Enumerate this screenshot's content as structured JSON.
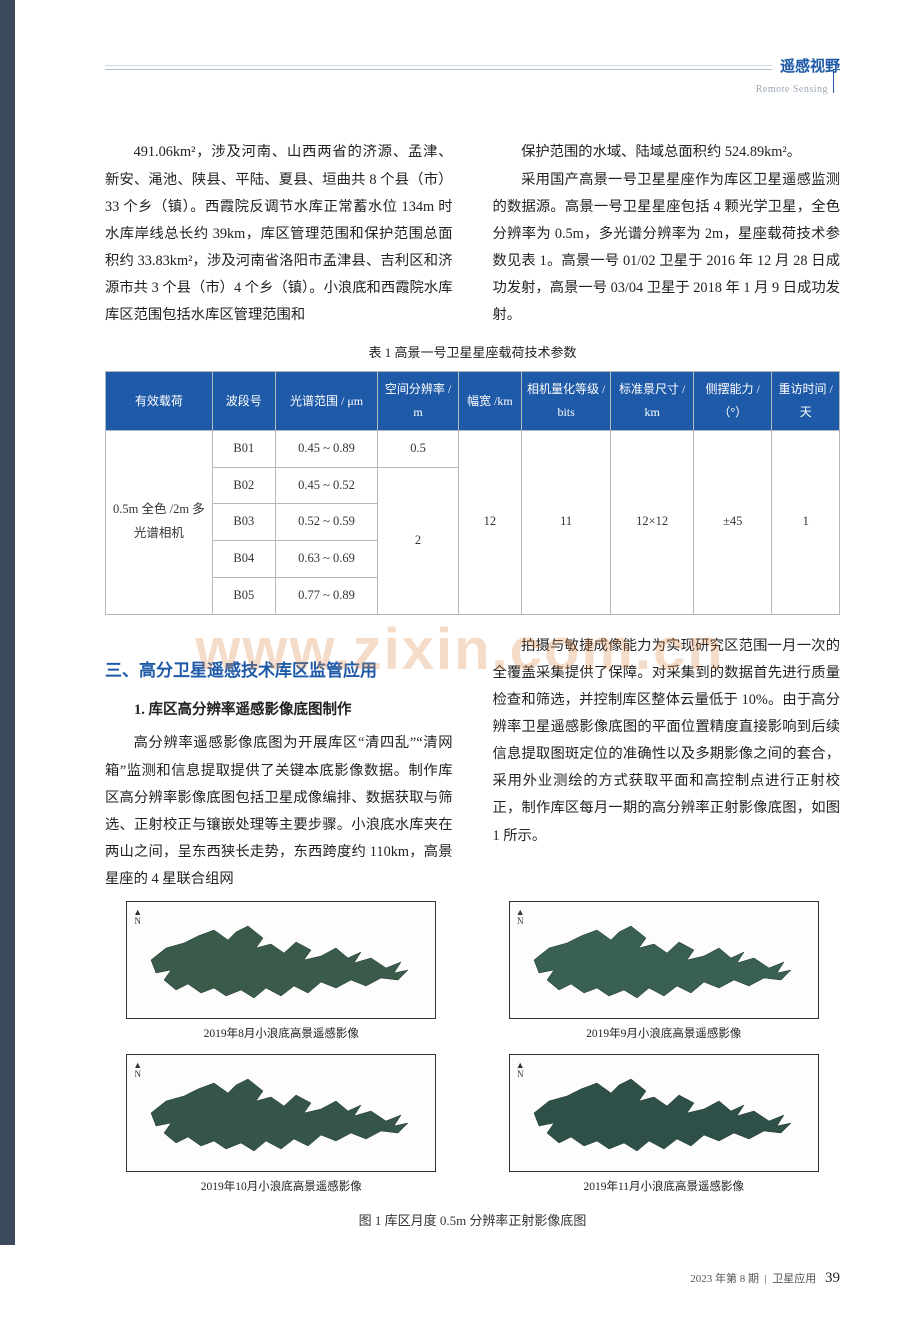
{
  "header": {
    "cn": "遥感视野",
    "en": "Remote Sensing"
  },
  "intro_paragraphs": {
    "p1_left": "491.06km²，涉及河南、山西两省的济源、孟津、新安、渑池、陕县、平陆、夏县、垣曲共 8 个县（市）33 个乡（镇）。西霞院反调节水库正常蓄水位 134m 时水库岸线总长约 39km，库区管理范围和保护范围总面积约 33.83km²，涉及河南省洛阳市孟津县、吉利区和济源市共 3 个县（市）4 个乡（镇）。小浪底和西霞院水库库区范围包括水库区管理范围和",
    "p1_right": "保护范围的水域、陆域总面积约 524.89km²。",
    "p2_right": "采用国产高景一号卫星星座作为库区卫星遥感监测的数据源。高景一号卫星星座包括 4 颗光学卫星，全色分辨率为 0.5m，多光谱分辨率为 2m，星座载荷技术参数见表 1。高景一号 01/02 卫星于 2016 年 12 月 28 日成功发射，高景一号 03/04 卫星于 2018 年 1 月 9 日成功发射。"
  },
  "table": {
    "caption": "表 1  高景一号卫星星座载荷技术参数",
    "columns": [
      "有效载荷",
      "波段号",
      "光谱范围 / μm",
      "空间分辨率 / m",
      "幅宽 /km",
      "相机量化等级 / bits",
      "标准景尺寸 / km",
      "侧摆能力 /（°）",
      "重访时间 / 天"
    ],
    "payload": "0.5m 全色 /2m 多光谱相机",
    "rows": [
      {
        "band": "B01",
        "range": "0.45 ~ 0.89",
        "res": "0.5"
      },
      {
        "band": "B02",
        "range": "0.45 ~ 0.52"
      },
      {
        "band": "B03",
        "range": "0.52 ~ 0.59"
      },
      {
        "band": "B04",
        "range": "0.63 ~ 0.69"
      },
      {
        "band": "B05",
        "range": "0.77 ~ 0.89"
      }
    ],
    "res_multi": "2",
    "swath": "12",
    "bits": "11",
    "scene": "12×12",
    "swing": "±45",
    "revisit": "1",
    "col_widths": [
      "98px",
      "58px",
      "94px",
      "74px",
      "58px",
      "82px",
      "76px",
      "72px",
      "62px"
    ],
    "header_bg": "#1e5aa8",
    "border_color": "#b0b8c0"
  },
  "watermark": "www.zixin.com.cn",
  "body": {
    "section_heading": "三、高分卫星遥感技术库区监管应用",
    "sub_heading": "1. 库区高分辨率遥感影像底图制作",
    "p_left": "高分辨率遥感影像底图为开展库区“清四乱”“清网箱”监测和信息提取提供了关键本底影像数据。制作库区高分辨率影像底图包括卫星成像编排、数据获取与筛选、正射校正与镶嵌处理等主要步骤。小浪底水库夹在两山之间，呈东西狭长走势，东西跨度约 110km，高景星座的 4 星联合组网",
    "p_right": "拍摄与敏捷成像能力为实现研究区范围一月一次的全覆盖采集提供了保障。对采集到的数据首先进行质量检查和筛选，并控制库区整体云量低于 10%。由于高分辨率卫星遥感影像底图的平面位置精度直接影响到后续信息提取图斑定位的准确性以及多期影像之间的套合，采用外业测绘的方式获取平面和高控制点进行正射校正，制作库区每月一期的高分辨率正射影像底图，如图 1 所示。"
  },
  "figures": {
    "panels": [
      {
        "caption": "2019年8月小浪底高景遥感影像",
        "fill": "#3a5a4a"
      },
      {
        "caption": "2019年9月小浪底高景遥感影像",
        "fill": "#3a6055"
      },
      {
        "caption": "2019年10月小浪底高景遥感影像",
        "fill": "#35554c"
      },
      {
        "caption": "2019年11月小浪底高景遥感影像",
        "fill": "#2f5048"
      }
    ],
    "main_caption": "图 1  库区月度 0.5m 分辨率正射影像底图",
    "compass_label": "N"
  },
  "footer": {
    "issue": "2023 年第 8 期",
    "journal": "卫星应用",
    "page": "39"
  }
}
